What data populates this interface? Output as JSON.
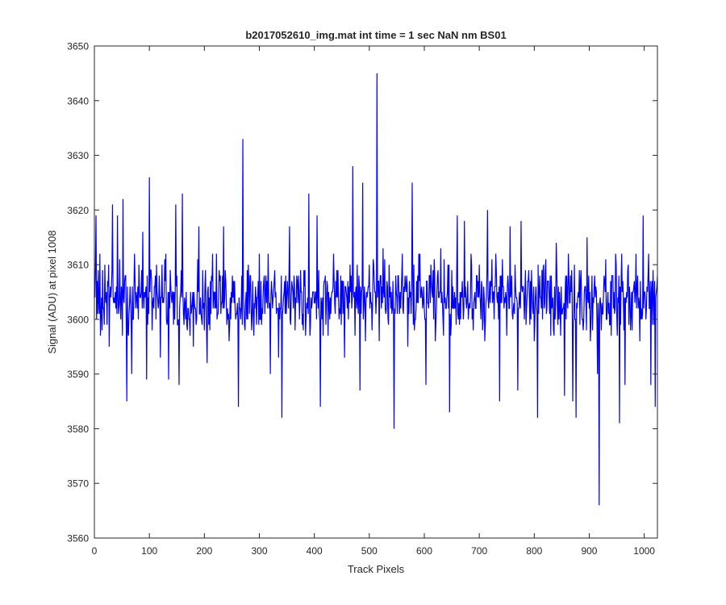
{
  "chart_data": {
    "type": "line",
    "title": "b2017052610_img.mat int time = 1 sec  NaN nm BS01",
    "xlabel": "Track Pixels",
    "ylabel": "Signal (ADU) at pixel 1008",
    "xlim": [
      0,
      1024
    ],
    "ylim": [
      3560,
      3650
    ],
    "xticks": [
      0,
      100,
      200,
      300,
      400,
      500,
      600,
      700,
      800,
      900,
      1000
    ],
    "yticks": [
      3560,
      3570,
      3580,
      3590,
      3600,
      3610,
      3620,
      3630,
      3640,
      3650
    ],
    "grid": false,
    "legend": "none",
    "series_color": "#0000ff",
    "series": [
      {
        "x_start": 1,
        "x_step": 1,
        "baseline": 3604,
        "noise_amplitude": 7,
        "points": [
          [
            1,
            3604
          ],
          [
            3,
            3619
          ],
          [
            6,
            3601
          ],
          [
            10,
            3612
          ],
          [
            14,
            3598
          ],
          [
            19,
            3610
          ],
          [
            27,
            3595
          ],
          [
            33,
            3621
          ],
          [
            38,
            3605
          ],
          [
            42,
            3619
          ],
          [
            47,
            3603
          ],
          [
            52,
            3622
          ],
          [
            56,
            3608
          ],
          [
            59,
            3585
          ],
          [
            64,
            3603
          ],
          [
            68,
            3590
          ],
          [
            73,
            3612
          ],
          [
            80,
            3600
          ],
          [
            88,
            3616
          ],
          [
            95,
            3589
          ],
          [
            100,
            3626
          ],
          [
            105,
            3598
          ],
          [
            113,
            3610
          ],
          [
            120,
            3593
          ],
          [
            130,
            3612
          ],
          [
            135,
            3589
          ],
          [
            140,
            3604
          ],
          [
            148,
            3621
          ],
          [
            154,
            3588
          ],
          [
            160,
            3623
          ],
          [
            170,
            3602
          ],
          [
            180,
            3595
          ],
          [
            190,
            3617
          ],
          [
            200,
            3598
          ],
          [
            205,
            3592
          ],
          [
            215,
            3612
          ],
          [
            225,
            3601
          ],
          [
            235,
            3617
          ],
          [
            245,
            3596
          ],
          [
            255,
            3607
          ],
          [
            262,
            3584
          ],
          [
            266,
            3600
          ],
          [
            270,
            3633
          ],
          [
            274,
            3598
          ],
          [
            280,
            3610
          ],
          [
            290,
            3597
          ],
          [
            300,
            3612
          ],
          [
            310,
            3601
          ],
          [
            320,
            3590
          ],
          [
            330,
            3605
          ],
          [
            335,
            3593
          ],
          [
            341,
            3582
          ],
          [
            345,
            3605
          ],
          [
            355,
            3617
          ],
          [
            365,
            3598
          ],
          [
            375,
            3609
          ],
          [
            384,
            3597
          ],
          [
            390,
            3623
          ],
          [
            395,
            3602
          ],
          [
            405,
            3619
          ],
          [
            411,
            3584
          ],
          [
            415,
            3604
          ],
          [
            425,
            3597
          ],
          [
            435,
            3612
          ],
          [
            445,
            3600
          ],
          [
            455,
            3593
          ],
          [
            465,
            3610
          ],
          [
            470,
            3628
          ],
          [
            474,
            3597
          ],
          [
            478,
            3610
          ],
          [
            483,
            3587
          ],
          [
            488,
            3625
          ],
          [
            493,
            3596
          ],
          [
            500,
            3610
          ],
          [
            505,
            3598
          ],
          [
            510,
            3605
          ],
          [
            514,
            3645
          ],
          [
            518,
            3596
          ],
          [
            525,
            3613
          ],
          [
            535,
            3599
          ],
          [
            545,
            3580
          ],
          [
            550,
            3604
          ],
          [
            560,
            3612
          ],
          [
            570,
            3595
          ],
          [
            578,
            3625
          ],
          [
            583,
            3600
          ],
          [
            590,
            3612
          ],
          [
            597,
            3602
          ],
          [
            603,
            3588
          ],
          [
            610,
            3608
          ],
          [
            620,
            3596
          ],
          [
            630,
            3613
          ],
          [
            640,
            3602
          ],
          [
            646,
            3583
          ],
          [
            652,
            3606
          ],
          [
            660,
            3619
          ],
          [
            665,
            3605
          ],
          [
            673,
            3618
          ],
          [
            680,
            3600
          ],
          [
            690,
            3603
          ],
          [
            700,
            3610
          ],
          [
            710,
            3596
          ],
          [
            715,
            3620
          ],
          [
            720,
            3603
          ],
          [
            730,
            3612
          ],
          [
            737,
            3585
          ],
          [
            742,
            3611
          ],
          [
            750,
            3597
          ],
          [
            756,
            3617
          ],
          [
            762,
            3602
          ],
          [
            770,
            3587
          ],
          [
            776,
            3618
          ],
          [
            782,
            3600
          ],
          [
            790,
            3609
          ],
          [
            800,
            3596
          ],
          [
            806,
            3582
          ],
          [
            812,
            3604
          ],
          [
            820,
            3609
          ],
          [
            830,
            3597
          ],
          [
            840,
            3614
          ],
          [
            850,
            3601
          ],
          [
            855,
            3586
          ],
          [
            862,
            3612
          ],
          [
            870,
            3585
          ],
          [
            876,
            3582
          ],
          [
            882,
            3609
          ],
          [
            890,
            3600
          ],
          [
            896,
            3615
          ],
          [
            902,
            3596
          ],
          [
            910,
            3608
          ],
          [
            915,
            3590
          ],
          [
            918,
            3566
          ],
          [
            922,
            3598
          ],
          [
            930,
            3611
          ],
          [
            940,
            3597
          ],
          [
            948,
            3612
          ],
          [
            955,
            3581
          ],
          [
            960,
            3605
          ],
          [
            965,
            3588
          ],
          [
            970,
            3609
          ],
          [
            978,
            3598
          ],
          [
            985,
            3612
          ],
          [
            992,
            3596
          ],
          [
            998,
            3619
          ],
          [
            1003,
            3600
          ],
          [
            1008,
            3612
          ],
          [
            1012,
            3588
          ],
          [
            1016,
            3609
          ],
          [
            1020,
            3584
          ],
          [
            1024,
            3608
          ]
        ]
      }
    ]
  }
}
